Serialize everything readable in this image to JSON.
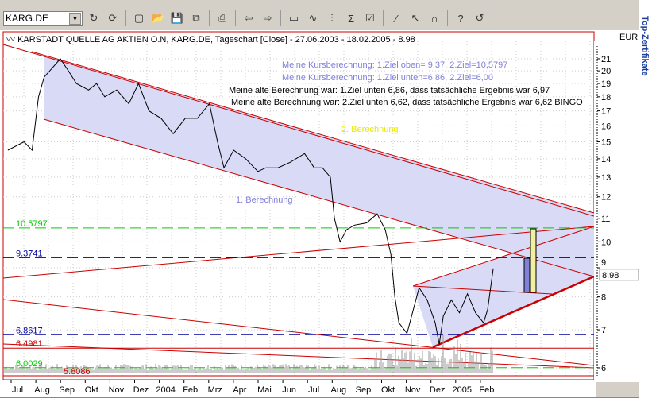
{
  "toolbar": {
    "symbol": "KARG.DE",
    "icons": [
      "refresh-icon",
      "update-icon",
      "new-icon",
      "open-icon",
      "save-icon",
      "copy-icon",
      "print-icon",
      "back-icon",
      "forward-icon",
      "window-icon",
      "indicator-icon",
      "studies-icon",
      "sigma-icon",
      "properties-icon",
      "draw-line-icon",
      "cursor-icon",
      "magnet-icon",
      "help-icon",
      "undo-icon"
    ]
  },
  "chart": {
    "title": "KARSTADT QUELLE AG AKTIEN O.N, KARG.DE, Tageschart [Close] - 27.06.2003 - 18.02.2005 - 8.98",
    "currency": "EUR",
    "last_price_label": "8.98",
    "annotations": [
      "Meine Kursberechnung: 1.Ziel oben= 9,37, 2.Ziel=10,5797",
      "Meine Kursberechnung: 1.Ziel  unten=6,86, 2.Ziel=6,00",
      "Meine alte Berechnung war: 1.Ziel unten 6,86, dass tatsächliche Ergebnis war 6,97",
      "Meine alte Berechnung war: 2.Ziel unten 6,62, dass tatsächliche Ergebnis war 6,62 BINGO"
    ],
    "channel_labels": [
      "1. Berechnung",
      "2. Berechnung"
    ],
    "colors": {
      "price": "#000000",
      "channel_fill": "#d9dbf6",
      "channel_line": "#cc0000",
      "green": "#00cc00",
      "blue": "#000099",
      "annotation_blue": "#8080d8",
      "annotation_yellow": "#e8e800"
    }
  },
  "side_panel": {
    "label": "Top-Zertifikate"
  },
  "chart_data": {
    "type": "line",
    "scale": "log",
    "ylim": [
      5.8,
      22
    ],
    "y_ticks": [
      "21",
      "20",
      "19",
      "18",
      "17",
      "16",
      "15",
      "14",
      "13",
      "12",
      "11",
      "10",
      "9",
      "8",
      "7",
      "6"
    ],
    "x_ticks": [
      "Jul",
      "Aug",
      "Sep",
      "Okt",
      "Nov",
      "Dez",
      "2004",
      "Feb",
      "Mrz",
      "Apr",
      "Mai",
      "Jun",
      "Jul",
      "Aug",
      "Sep",
      "Okt",
      "Nov",
      "Dez",
      "2005",
      "Feb"
    ],
    "levels": [
      {
        "label": "10.5797",
        "value": 10.5797,
        "color": "#00cc00",
        "style": "dashed"
      },
      {
        "label": "9.3741",
        "value": 9.3741,
        "color": "#000099",
        "style": "dashed"
      },
      {
        "label": "6.8617",
        "value": 6.8617,
        "color": "#000099",
        "style": "dashed"
      },
      {
        "label": "6.4981",
        "value": 6.4981,
        "color": "#cc0000",
        "style": "solid"
      },
      {
        "label": "6.0029",
        "value": 6.0029,
        "color": "#00cc00",
        "style": "dashed"
      },
      {
        "label": "5.8086",
        "value": 5.8086,
        "color": "#cc0000",
        "style": "solid"
      }
    ],
    "series": [
      {
        "values": [
          [
            "2003-06-27",
            14.5
          ],
          [
            "2003-07-17",
            15
          ],
          [
            "2003-07-27",
            14.5
          ],
          [
            "2003-08-04",
            18
          ],
          [
            "2003-08-11",
            19.5
          ],
          [
            "2003-08-18",
            20
          ],
          [
            "2003-08-31",
            21
          ],
          [
            "2003-09-10",
            20
          ],
          [
            "2003-09-20",
            19
          ],
          [
            "2003-10-05",
            18.5
          ],
          [
            "2003-10-15",
            19
          ],
          [
            "2003-10-25",
            18
          ],
          [
            "2003-11-09",
            18.5
          ],
          [
            "2003-11-24",
            17.5
          ],
          [
            "2003-12-06",
            19
          ],
          [
            "2003-12-19",
            17
          ],
          [
            "2004-01-03",
            16.5
          ],
          [
            "2004-01-18",
            15.5
          ],
          [
            "2004-02-02",
            16.5
          ],
          [
            "2004-02-17",
            16.5
          ],
          [
            "2004-03-03",
            17.5
          ],
          [
            "2004-03-13",
            15
          ],
          [
            "2004-03-21",
            13.5
          ],
          [
            "2004-04-02",
            14.5
          ],
          [
            "2004-04-17",
            14
          ],
          [
            "2004-05-02",
            13.3
          ],
          [
            "2004-05-12",
            13.5
          ],
          [
            "2004-05-27",
            13.5
          ],
          [
            "2004-06-11",
            13.8
          ],
          [
            "2004-06-29",
            14.3
          ],
          [
            "2004-07-11",
            13.5
          ],
          [
            "2004-07-21",
            13.5
          ],
          [
            "2004-07-31",
            13
          ],
          [
            "2004-08-05",
            11
          ],
          [
            "2004-08-12",
            10
          ],
          [
            "2004-08-20",
            10.5
          ],
          [
            "2004-08-30",
            10.7
          ],
          [
            "2004-09-14",
            10.8
          ],
          [
            "2004-09-27",
            11.2
          ],
          [
            "2004-10-07",
            10.5
          ],
          [
            "2004-10-14",
            9.5
          ],
          [
            "2004-10-19",
            8
          ],
          [
            "2004-10-24",
            7.2
          ],
          [
            "2004-11-03",
            6.9
          ],
          [
            "2004-11-13",
            7.8
          ],
          [
            "2004-11-18",
            8.3
          ],
          [
            "2004-11-28",
            7.9
          ],
          [
            "2004-12-08",
            7.2
          ],
          [
            "2004-12-13",
            6.6
          ],
          [
            "2004-12-18",
            7.4
          ],
          [
            "2004-12-28",
            7.9
          ],
          [
            "2005-01-07",
            7.5
          ],
          [
            "2005-01-17",
            8.1
          ],
          [
            "2005-01-27",
            7.5
          ],
          [
            "2005-02-06",
            7.2
          ],
          [
            "2005-02-11",
            7.6
          ],
          [
            "2005-02-18",
            8.98
          ]
        ]
      }
    ]
  }
}
